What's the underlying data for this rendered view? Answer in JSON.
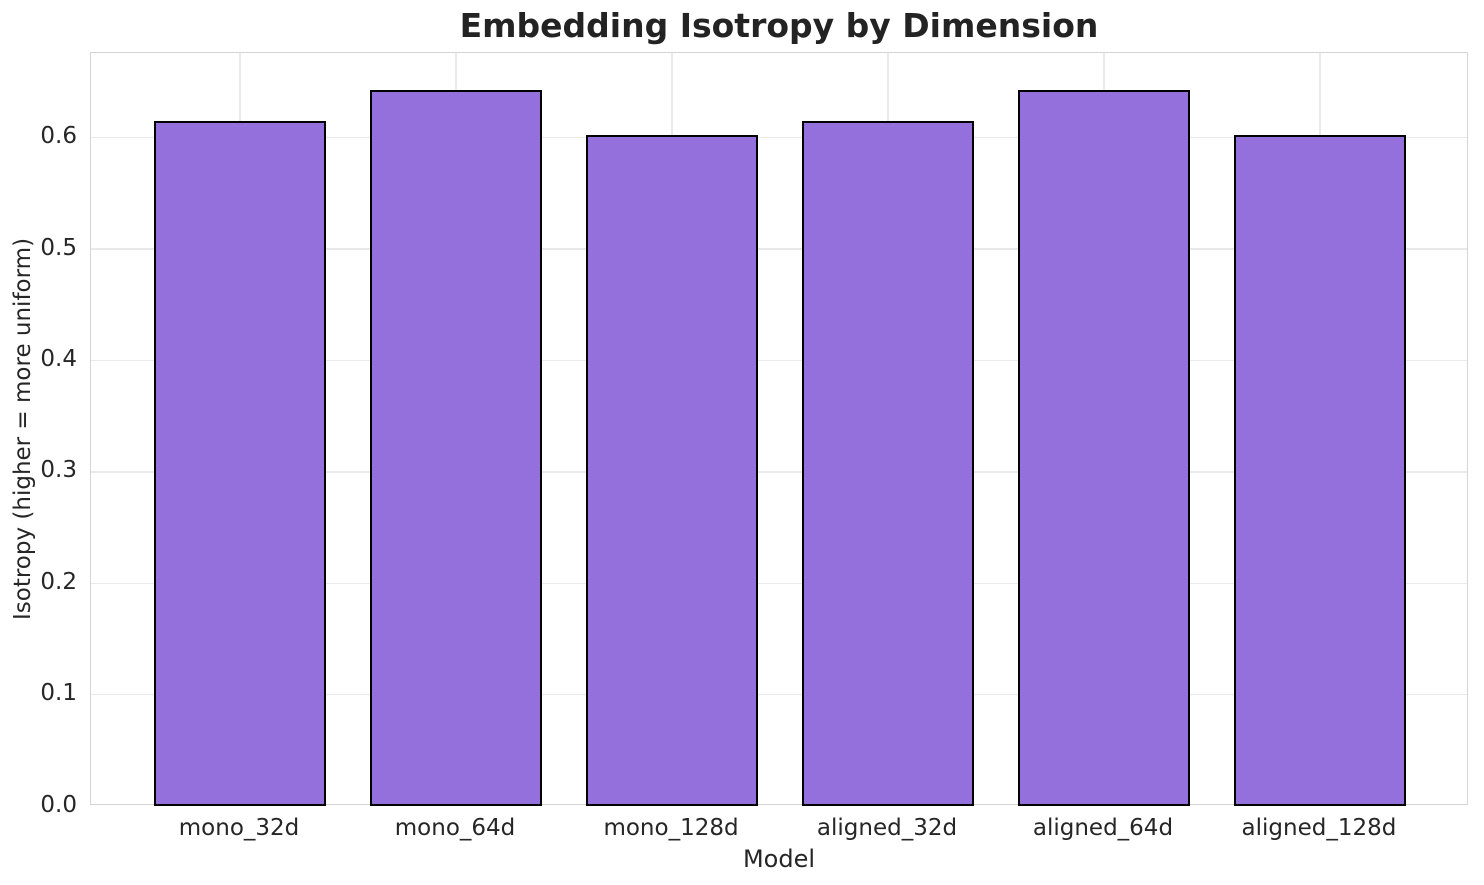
{
  "chart_data": {
    "type": "bar",
    "title": "Embedding Isotropy by Dimension",
    "xlabel": "Model",
    "ylabel": "Isotropy (higher = more uniform)",
    "categories": [
      "mono_32d",
      "mono_64d",
      "mono_128d",
      "aligned_32d",
      "aligned_64d",
      "aligned_128d"
    ],
    "values": [
      0.615,
      0.643,
      0.602,
      0.615,
      0.643,
      0.602
    ],
    "ylim": [
      0,
      0.676
    ],
    "yticks": [
      0.0,
      0.1,
      0.2,
      0.3,
      0.4,
      0.5,
      0.6
    ],
    "ytick_labels": [
      "0.0",
      "0.1",
      "0.2",
      "0.3",
      "0.4",
      "0.5",
      "0.6"
    ],
    "grid": true,
    "legend": "none",
    "bar_width_fraction": 0.8,
    "x_axis_margin_units": 0.69,
    "colors": {
      "bar_fill": "#9370DB",
      "bar_edge": "#000000",
      "gridline": "#e9e9e9",
      "spine": "#d5d5d5",
      "text": "#262626",
      "background": "#ffffff"
    }
  }
}
